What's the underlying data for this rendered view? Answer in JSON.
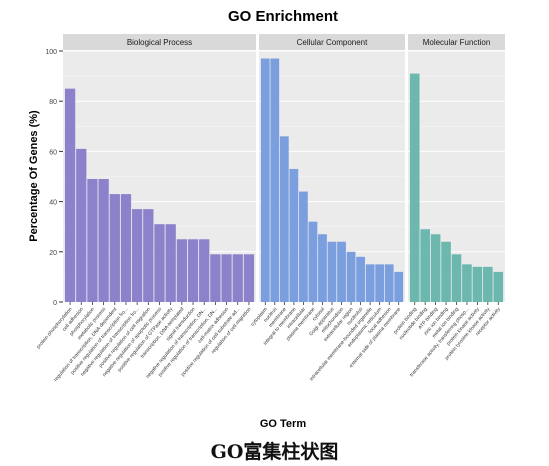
{
  "chart_data": {
    "type": "bar",
    "title": "GO Enrichment",
    "xlabel": "GO Term",
    "ylabel": "Percentage Of Genes (%)",
    "ylim": [
      0,
      100
    ],
    "yticks": [
      0,
      20,
      40,
      60,
      80,
      100
    ],
    "grid": true,
    "legend": "none",
    "panels": [
      {
        "name": "Biological Process",
        "color": "#8C82CC",
        "categories": [
          "protein phosphorylation",
          "cell adhesion",
          "phosphorylation",
          "metabolic process",
          "regulation of transcription, DNA-dependent",
          "positive regulation of transcription fro...",
          "negative regulation of transcription fro...",
          "positive regulation of cell migration",
          "negative regulation of apoptotic process",
          "positive regulation of GTPase activity",
          "transcription, DNA-templated",
          "signal transduction",
          "negative regulation of transcription, DN...",
          "positive regulation of transcription, DN...",
          "cell-matrix adhesion",
          "positive regulation of cell-substrate ad...",
          "regulation of cell migration"
        ],
        "values": [
          85,
          61,
          49,
          49,
          43,
          43,
          37,
          37,
          31,
          31,
          25,
          25,
          25,
          19,
          19,
          19,
          19
        ]
      },
      {
        "name": "Cellular Component",
        "color": "#7A9EDE",
        "categories": [
          "cytoplasm",
          "nucleus",
          "membrane",
          "integral to membrane",
          "intracellular",
          "plasma membrane",
          "cytosol",
          "Golgi apparatus",
          "mitochondrion",
          "extracellular region",
          "nucleolus",
          "intracellular membrane-bounded organelle",
          "endoplasmic reticulum",
          "focal adhesion",
          "external side of plasma membrane"
        ],
        "values": [
          97,
          97,
          66,
          53,
          44,
          32,
          27,
          24,
          24,
          20,
          18,
          15,
          15,
          15,
          12
        ]
      },
      {
        "name": "Molecular Function",
        "color": "#6DB8AE",
        "categories": [
          "protein binding",
          "nucleotide binding",
          "ATP binding",
          "zinc ion binding",
          "metal ion binding",
          "transferase activity, transferring phosp...",
          "protein kinase activity",
          "protein tyrosine kinase activity",
          "receptor activity"
        ],
        "values": [
          91,
          29,
          27,
          24,
          19,
          15,
          14,
          14,
          12
        ]
      }
    ]
  },
  "caption": "GO富集柱状图"
}
